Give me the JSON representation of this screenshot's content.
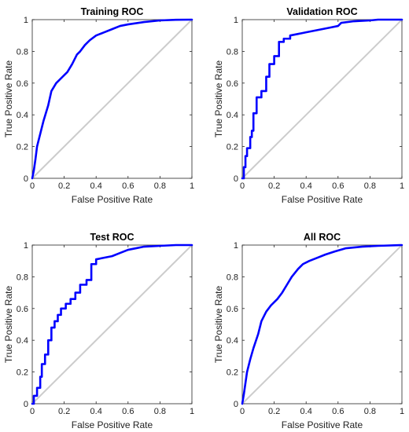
{
  "chart_data": [
    {
      "type": "line",
      "title": "Training ROC",
      "xlabel": "False Positive Rate",
      "ylabel": "True Positive Rate",
      "xlim": [
        0,
        1
      ],
      "ylim": [
        0,
        1
      ],
      "xticks": [
        "0",
        "0.2",
        "0.4",
        "0.6",
        "0.8",
        "1"
      ],
      "yticks": [
        "0",
        "0.2",
        "0.4",
        "0.6",
        "0.8",
        "1"
      ],
      "grid": false,
      "series": [
        {
          "color": "#0000ff",
          "x": [
            0,
            0.01,
            0.02,
            0.03,
            0.05,
            0.07,
            0.1,
            0.12,
            0.15,
            0.18,
            0.22,
            0.25,
            0.28,
            0.3,
            0.33,
            0.36,
            0.4,
            0.45,
            0.5,
            0.55,
            0.6,
            0.7,
            0.8,
            0.9,
            1.0
          ],
          "y": [
            0,
            0.05,
            0.12,
            0.2,
            0.28,
            0.36,
            0.46,
            0.55,
            0.6,
            0.63,
            0.67,
            0.72,
            0.78,
            0.8,
            0.84,
            0.87,
            0.9,
            0.92,
            0.94,
            0.96,
            0.97,
            0.985,
            0.995,
            0.999,
            1.0
          ]
        },
        {
          "color": "#cccccc",
          "x": [
            0,
            1
          ],
          "y": [
            0,
            1
          ]
        }
      ]
    },
    {
      "type": "line",
      "title": "Validation ROC",
      "xlabel": "False Positive Rate",
      "ylabel": "True Positive Rate",
      "xlim": [
        0,
        1
      ],
      "ylim": [
        0,
        1
      ],
      "xticks": [
        "0",
        "0.2",
        "0.4",
        "0.6",
        "0.8",
        "1"
      ],
      "yticks": [
        "0",
        "0.2",
        "0.4",
        "0.6",
        "0.8",
        "1"
      ],
      "grid": false,
      "series": [
        {
          "color": "#0000ff",
          "x": [
            0,
            0.01,
            0.01,
            0.02,
            0.02,
            0.03,
            0.03,
            0.05,
            0.05,
            0.06,
            0.06,
            0.07,
            0.07,
            0.09,
            0.09,
            0.12,
            0.12,
            0.15,
            0.15,
            0.17,
            0.17,
            0.2,
            0.2,
            0.23,
            0.23,
            0.26,
            0.26,
            0.3,
            0.3,
            0.35,
            0.4,
            0.45,
            0.5,
            0.55,
            0.6,
            0.62,
            0.7,
            0.8,
            0.85,
            0.9,
            1.0
          ],
          "y": [
            0,
            0,
            0.07,
            0.07,
            0.14,
            0.14,
            0.19,
            0.19,
            0.26,
            0.26,
            0.3,
            0.3,
            0.41,
            0.41,
            0.51,
            0.51,
            0.55,
            0.55,
            0.64,
            0.64,
            0.72,
            0.72,
            0.77,
            0.77,
            0.86,
            0.86,
            0.88,
            0.88,
            0.9,
            0.91,
            0.92,
            0.93,
            0.94,
            0.95,
            0.96,
            0.98,
            0.99,
            0.995,
            1.0,
            1.0,
            1.0
          ]
        },
        {
          "color": "#cccccc",
          "x": [
            0,
            1
          ],
          "y": [
            0,
            1
          ]
        }
      ]
    },
    {
      "type": "line",
      "title": "Test ROC",
      "xlabel": "False Positive Rate",
      "ylabel": "True Positive Rate",
      "xlim": [
        0,
        1
      ],
      "ylim": [
        0,
        1
      ],
      "xticks": [
        "0",
        "0.2",
        "0.4",
        "0.6",
        "0.8",
        "1"
      ],
      "yticks": [
        "0",
        "0.2",
        "0.4",
        "0.6",
        "0.8",
        "1"
      ],
      "grid": false,
      "series": [
        {
          "color": "#0000ff",
          "x": [
            0,
            0.01,
            0.01,
            0.03,
            0.03,
            0.05,
            0.05,
            0.06,
            0.06,
            0.08,
            0.08,
            0.1,
            0.1,
            0.12,
            0.12,
            0.14,
            0.14,
            0.16,
            0.16,
            0.18,
            0.18,
            0.21,
            0.21,
            0.24,
            0.24,
            0.27,
            0.27,
            0.3,
            0.3,
            0.34,
            0.34,
            0.37,
            0.37,
            0.4,
            0.4,
            0.45,
            0.5,
            0.55,
            0.6,
            0.65,
            0.7,
            0.8,
            0.9,
            1.0
          ],
          "y": [
            0,
            0,
            0.05,
            0.05,
            0.1,
            0.1,
            0.17,
            0.17,
            0.25,
            0.25,
            0.31,
            0.31,
            0.4,
            0.4,
            0.48,
            0.48,
            0.52,
            0.52,
            0.56,
            0.56,
            0.6,
            0.6,
            0.63,
            0.63,
            0.66,
            0.66,
            0.7,
            0.7,
            0.75,
            0.75,
            0.78,
            0.78,
            0.88,
            0.88,
            0.91,
            0.92,
            0.93,
            0.95,
            0.97,
            0.98,
            0.99,
            0.995,
            1.0,
            1.0
          ]
        },
        {
          "color": "#cccccc",
          "x": [
            0,
            1
          ],
          "y": [
            0,
            1
          ]
        }
      ]
    },
    {
      "type": "line",
      "title": "All ROC",
      "xlabel": "False Positive Rate",
      "ylabel": "True Positive Rate",
      "xlim": [
        0,
        1
      ],
      "ylim": [
        0,
        1
      ],
      "xticks": [
        "0",
        "0.2",
        "0.4",
        "0.6",
        "0.8",
        "1"
      ],
      "yticks": [
        "0",
        "0.2",
        "0.4",
        "0.6",
        "0.8",
        "1"
      ],
      "grid": false,
      "series": [
        {
          "color": "#0000ff",
          "x": [
            0,
            0.01,
            0.02,
            0.03,
            0.05,
            0.07,
            0.1,
            0.12,
            0.15,
            0.18,
            0.22,
            0.25,
            0.28,
            0.31,
            0.35,
            0.38,
            0.42,
            0.47,
            0.52,
            0.58,
            0.65,
            0.75,
            0.85,
            1.0
          ],
          "y": [
            0,
            0.06,
            0.13,
            0.2,
            0.28,
            0.35,
            0.44,
            0.52,
            0.58,
            0.62,
            0.66,
            0.7,
            0.75,
            0.8,
            0.85,
            0.88,
            0.9,
            0.92,
            0.94,
            0.96,
            0.98,
            0.99,
            0.995,
            1.0
          ]
        },
        {
          "color": "#cccccc",
          "x": [
            0,
            1
          ],
          "y": [
            0,
            1
          ]
        }
      ]
    }
  ]
}
